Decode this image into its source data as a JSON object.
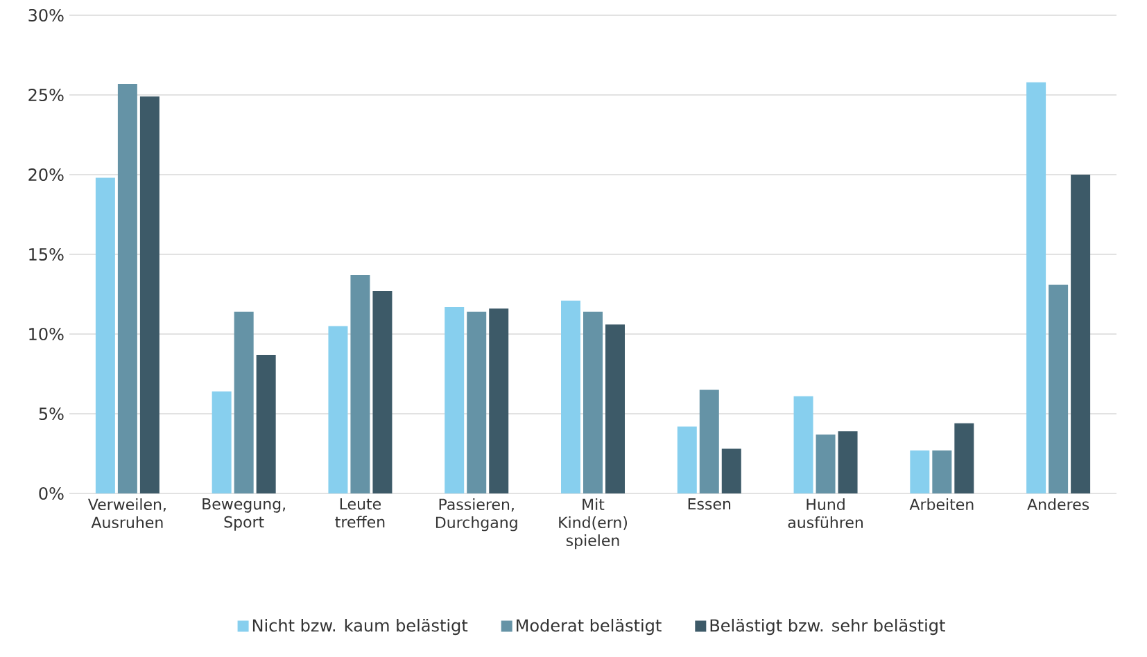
{
  "chart_data": {
    "type": "bar",
    "categories": [
      "Verweilen, Ausruhen",
      "Bewegung, Sport",
      "Leute treffen",
      "Passieren, Durchgang",
      "Mit Kind(ern) spielen",
      "Essen",
      "Hund ausführen",
      "Arbeiten",
      "Anderes"
    ],
    "series": [
      {
        "name": "Nicht bzw. kaum belästigt",
        "color": "#87cfee",
        "values": [
          19.8,
          6.4,
          10.5,
          11.7,
          12.1,
          4.2,
          6.1,
          2.7,
          25.8
        ]
      },
      {
        "name": "Moderat belästigt",
        "color": "#6593a6",
        "values": [
          25.7,
          11.4,
          13.7,
          11.4,
          11.4,
          6.5,
          3.7,
          2.7,
          13.1
        ]
      },
      {
        "name": "Belästigt bzw. sehr belästigt",
        "color": "#3d5a68",
        "values": [
          24.9,
          8.7,
          12.7,
          11.6,
          10.6,
          2.8,
          3.9,
          4.4,
          20.0
        ]
      }
    ],
    "ylim": [
      0,
      30
    ],
    "yticks": [
      {
        "value": 0,
        "label": "0%"
      },
      {
        "value": 5,
        "label": "5%"
      },
      {
        "value": 10,
        "label": "10%"
      },
      {
        "value": 15,
        "label": "15%"
      },
      {
        "value": 20,
        "label": "20%"
      },
      {
        "value": 25,
        "label": "25%"
      },
      {
        "value": 30,
        "label": "30%"
      }
    ],
    "grid": "y",
    "legend": "bottom"
  }
}
